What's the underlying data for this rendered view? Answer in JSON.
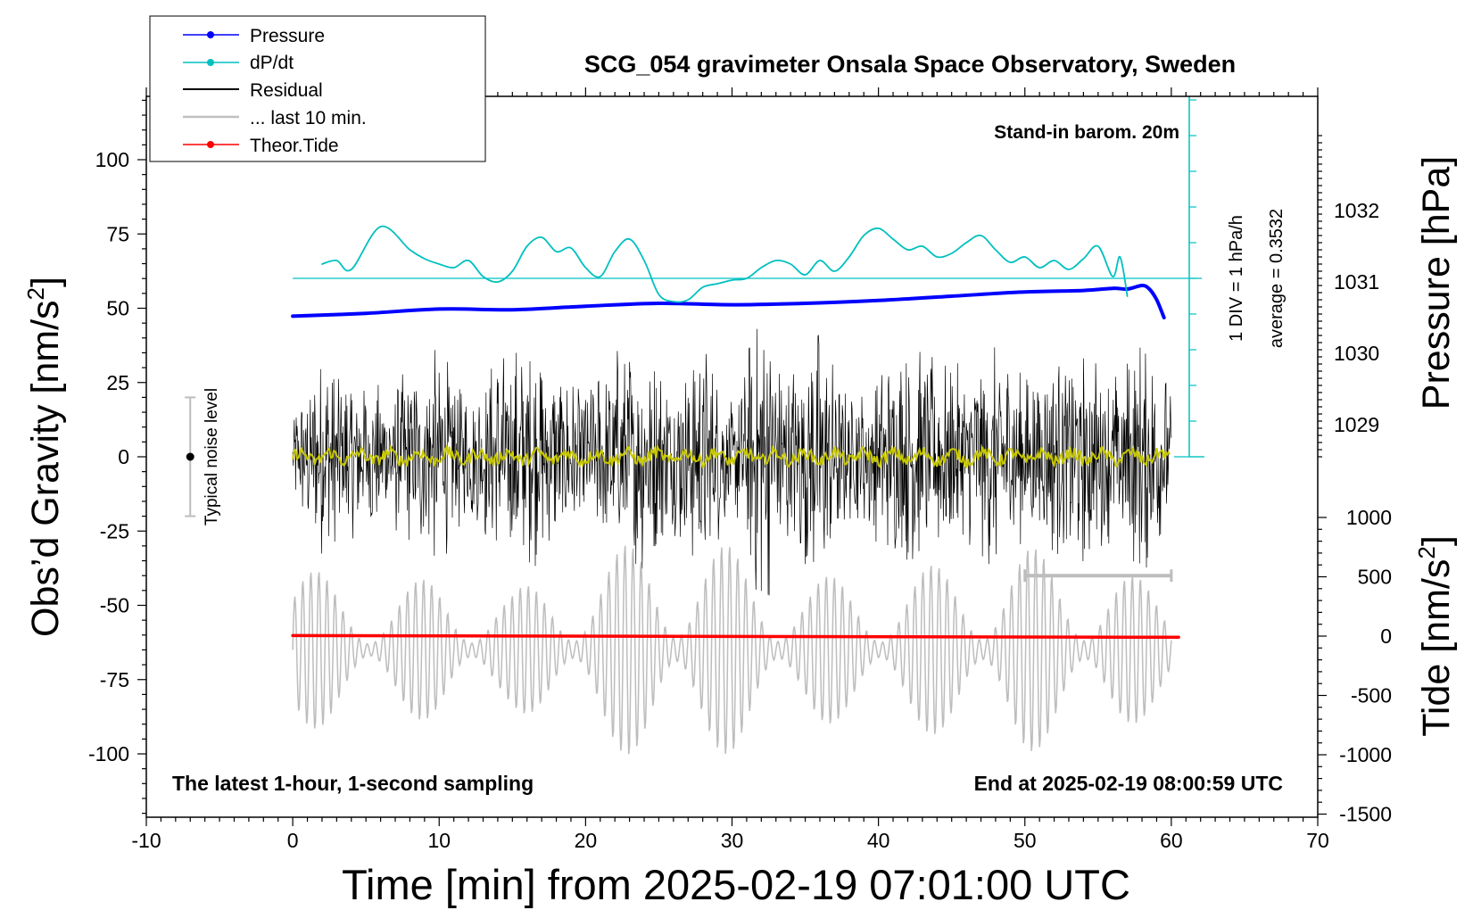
{
  "chart_data": {
    "type": "line",
    "title": "SCG_054 gravimeter Onsala Space Observatory, Sweden",
    "xlabel": "Time [min] from 2025-02-19 07:01:00 UTC",
    "ylabel": "Obs’d Gravity [nm/s²]",
    "ylabel_main": "Obs’d Gravity [nm/s",
    "ylabel_sup": "2",
    "ylabel_close": "]",
    "right_label_pressure": "Pressure [hPa]",
    "right_label_tide_main": "Tide [nm/s",
    "right_label_tide_sup": "2",
    "right_label_tide_close": "]",
    "xlim": [
      -10,
      70
    ],
    "ylim": [
      -120,
      120
    ],
    "x_ticks": [
      "-10",
      "0",
      "10",
      "20",
      "30",
      "40",
      "50",
      "60",
      "70"
    ],
    "y_ticks": [
      "100",
      "75",
      "50",
      "25",
      "0",
      "-25",
      "-50",
      "-75",
      "-100"
    ],
    "pressure_ticks": [
      "1032",
      "1031",
      "1030",
      "1029"
    ],
    "tide_ticks": [
      "1000",
      "500",
      "0",
      "-500",
      "-1000",
      "-1500"
    ],
    "annotations": {
      "barometer": "Stand-in barom. 20m",
      "div_scale": "1 DIV = 1 hPa/h",
      "average": "average = 0.3532",
      "noise": "Typical noise level",
      "latest": "The latest 1-hour, 1-second sampling",
      "end_time": "End at 2025-02-19 08:00:59 UTC"
    },
    "legend": {
      "position": "top-left",
      "entries": [
        {
          "label": "Pressure",
          "color": "#0000ff"
        },
        {
          "label": "dP/dt",
          "color": "#00c0c0"
        },
        {
          "label": "Residual",
          "color": "#000000"
        },
        {
          "label": "... last 10 min.",
          "color": "#c0c0c0"
        },
        {
          "label": "Theor.Tide",
          "color": "#ff0000"
        }
      ]
    },
    "series": [
      {
        "name": "Pressure",
        "unit": "hPa",
        "color": "#0000ff",
        "x": [
          0,
          5,
          10,
          15,
          20,
          25,
          30,
          35,
          40,
          45,
          50,
          54,
          56,
          57,
          58,
          58.5,
          59,
          59.5
        ],
        "values": [
          1030.52,
          1030.56,
          1030.62,
          1030.61,
          1030.66,
          1030.7,
          1030.68,
          1030.7,
          1030.74,
          1030.8,
          1030.86,
          1030.88,
          1030.91,
          1030.9,
          1030.95,
          1030.9,
          1030.75,
          1030.5
        ]
      },
      {
        "name": "dP/dt",
        "unit": "hPa/h",
        "color": "#00c0c0",
        "x": [
          2,
          3,
          4,
          6,
          8,
          9,
          10,
          11,
          12,
          13,
          14,
          15,
          16,
          17,
          18,
          19,
          20,
          21,
          22,
          23,
          24,
          25,
          26,
          27,
          28,
          29,
          30,
          31,
          32,
          33,
          34,
          35,
          36,
          37,
          38,
          39,
          40,
          41,
          42,
          43,
          44,
          45,
          46,
          47,
          48,
          49,
          50,
          51,
          52,
          53,
          54,
          55,
          56,
          56.5,
          57
        ],
        "values": [
          0.4,
          0.5,
          0.25,
          1.45,
          0.8,
          0.55,
          0.4,
          0.3,
          0.5,
          0.05,
          -0.1,
          0.2,
          0.9,
          1.15,
          0.75,
          0.85,
          0.3,
          0.05,
          0.75,
          1.1,
          0.5,
          -0.45,
          -0.65,
          -0.6,
          -0.25,
          -0.15,
          -0.05,
          0.0,
          0.3,
          0.5,
          0.4,
          0.1,
          0.5,
          0.2,
          0.6,
          1.2,
          1.4,
          1.1,
          0.8,
          0.9,
          0.6,
          0.7,
          1.0,
          1.2,
          0.8,
          0.45,
          0.6,
          0.3,
          0.5,
          0.25,
          0.55,
          0.9,
          0.05,
          0.6,
          -0.5
        ]
      },
      {
        "name": "Theor.Tide",
        "unit": "nm/s²",
        "color": "#ff0000",
        "x": [
          0,
          60.5
        ],
        "values": [
          5,
          -10
        ]
      }
    ],
    "residual_envelope": {
      "note": "dense 1-second residual signal, approximate amplitude in nm/s² versus minute",
      "color": "#000000",
      "x": [
        0,
        2,
        4,
        6,
        8,
        10,
        12,
        14,
        16,
        18,
        20,
        22,
        24,
        26,
        28,
        30,
        32,
        34,
        36,
        38,
        40,
        42,
        44,
        46,
        48,
        50,
        52,
        54,
        56,
        58,
        60
      ],
      "amplitude": [
        15,
        35,
        28,
        25,
        30,
        38,
        22,
        35,
        40,
        30,
        25,
        38,
        40,
        28,
        42,
        18,
        55,
        32,
        48,
        22,
        30,
        38,
        35,
        30,
        40,
        28,
        35,
        38,
        30,
        42,
        25
      ]
    },
    "last10_trace": {
      "note": "grey oscillating trace below residual, amplitude in nm/s² about the -60 baseline",
      "color": "#c0c0c0",
      "baseline": -60,
      "x": [
        0,
        5,
        10,
        15,
        20,
        25,
        30,
        35,
        40,
        45,
        50,
        55,
        60
      ],
      "amplitude": [
        30,
        20,
        25,
        20,
        30,
        40,
        35,
        25,
        25,
        30,
        35,
        30,
        20
      ]
    },
    "noise_bar": {
      "x": -7,
      "center": 0,
      "low": -20,
      "high": 20
    },
    "scale_bar": {
      "from": 50,
      "to": 60,
      "y": -40
    }
  }
}
